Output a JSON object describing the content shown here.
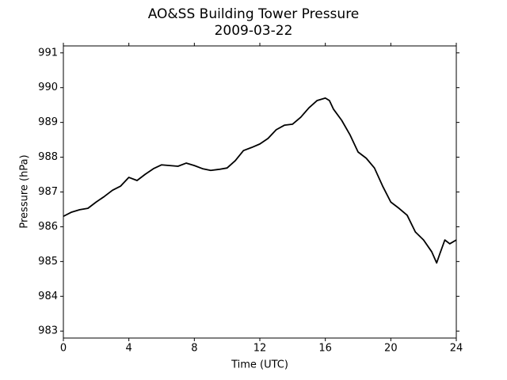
{
  "chart_data": {
    "type": "line",
    "title": "AO&SS Building Tower Pressure",
    "subtitle": "2009-03-22",
    "x_label": "Time (UTC)",
    "y_label": "Pressure (hPa)",
    "x": [
      0,
      0.5,
      1,
      1.5,
      2,
      2.5,
      3,
      3.5,
      4,
      4.5,
      5,
      5.5,
      6,
      6.5,
      7,
      7.5,
      8,
      8.5,
      9,
      9.5,
      10,
      10.5,
      11,
      11.5,
      12,
      12.5,
      13,
      13.5,
      14,
      14.5,
      15,
      15.5,
      16,
      16.25,
      16.5,
      17,
      17.5,
      18,
      18.5,
      19,
      19.5,
      20,
      20.5,
      21,
      21.5,
      22,
      22.5,
      22.8,
      23,
      23.3,
      23.6,
      24
    ],
    "values": [
      986.3,
      986.42,
      986.49,
      986.53,
      986.71,
      986.87,
      987.05,
      987.17,
      987.42,
      987.33,
      987.51,
      987.67,
      987.78,
      987.76,
      987.74,
      987.83,
      987.76,
      987.67,
      987.62,
      987.65,
      987.69,
      987.9,
      988.19,
      988.28,
      988.38,
      988.54,
      988.79,
      988.92,
      988.95,
      989.15,
      989.42,
      989.63,
      989.7,
      989.63,
      989.38,
      989.06,
      988.65,
      988.15,
      987.97,
      987.69,
      987.17,
      986.71,
      986.53,
      986.33,
      985.85,
      985.62,
      985.28,
      984.96,
      985.23,
      985.62,
      985.51,
      985.62
    ],
    "color": "#000000",
    "xlim": [
      0,
      24
    ],
    "xticks": [
      0,
      4,
      8,
      12,
      16,
      20,
      24
    ],
    "ylim": [
      982.8,
      991.2
    ],
    "yticks": [
      983,
      984,
      985,
      986,
      987,
      988,
      989,
      990,
      991
    ],
    "grid": false
  }
}
